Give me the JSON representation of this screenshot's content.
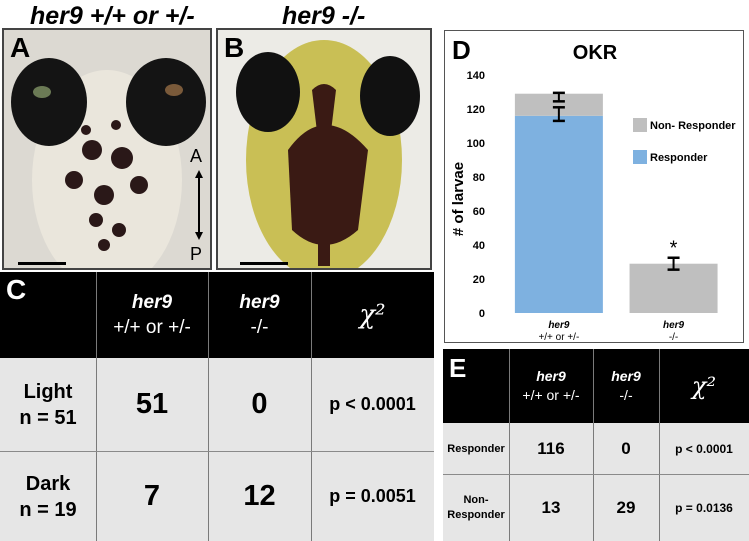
{
  "headers": {
    "wt": "her9 +/+ or +/-",
    "mut": "her9 -/-"
  },
  "panels": {
    "a": "A",
    "b": "B",
    "c": "C",
    "d": "D",
    "e": "E"
  },
  "orientation": {
    "anterior": "A",
    "posterior": "P"
  },
  "table_c": {
    "col1_gene": "her9",
    "col1_geno": "+/+ or +/-",
    "col2_gene": "her9",
    "col2_geno": "-/-",
    "col3": "χ²",
    "rows": [
      {
        "label1": "Light",
        "label2": "n = 51",
        "wt": "51",
        "mut": "0",
        "p": "p < 0.0001"
      },
      {
        "label1": "Dark",
        "label2": "n = 19",
        "wt": "7",
        "mut": "12",
        "p": "p = 0.0051"
      }
    ]
  },
  "chart_data": {
    "type": "bar",
    "stacked": true,
    "title": "OKR",
    "ylabel": "# of larvae",
    "xlabel": "",
    "ylim": [
      0,
      140
    ],
    "yticks": [
      "0",
      "20",
      "40",
      "60",
      "80",
      "100",
      "120",
      "140"
    ],
    "categories": [
      {
        "gene": "her9",
        "geno": "+/+ or +/-"
      },
      {
        "gene": "her9",
        "geno": "-/-"
      }
    ],
    "series": [
      {
        "name": "Responder",
        "values": [
          116,
          0
        ],
        "color": "#7eb1e0"
      },
      {
        "name": "Non- Responder",
        "values": [
          13,
          29
        ],
        "color": "#bfbfbf"
      }
    ],
    "error_bars": [
      {
        "category": 0,
        "center": 117,
        "half": 4
      },
      {
        "category": 0,
        "center": 127,
        "half": 2.5
      },
      {
        "category": 1,
        "center": 29,
        "half": 3.5
      }
    ],
    "annotations": [
      {
        "category": 1,
        "text": "*"
      }
    ],
    "legend_position": "right",
    "grid": false
  },
  "table_e": {
    "col1_gene": "her9",
    "col1_geno": "+/+ or +/-",
    "col2_gene": "her9",
    "col2_geno": "-/-",
    "col3": "χ²",
    "rows": [
      {
        "label1": "Responder",
        "label2": "",
        "wt": "116",
        "mut": "0",
        "p": "p < 0.0001"
      },
      {
        "label1": "Non-",
        "label2": "Responder",
        "wt": "13",
        "mut": "29",
        "p": "p = 0.0136"
      }
    ]
  }
}
